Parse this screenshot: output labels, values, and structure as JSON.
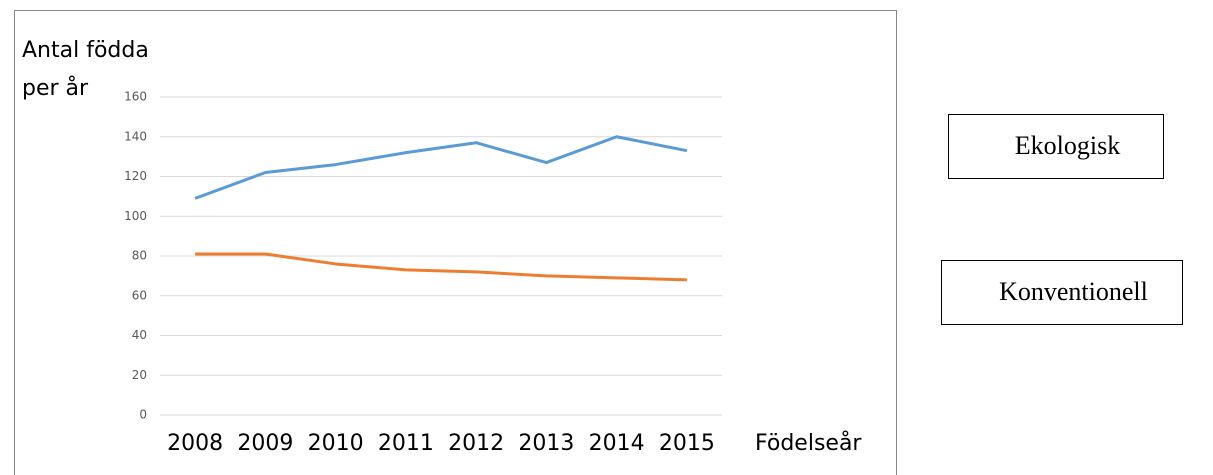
{
  "chart_data": {
    "type": "line",
    "ylabel": [
      "Antal födda",
      "per år"
    ],
    "xlabel": "Födelseår",
    "categories": [
      "2008",
      "2009",
      "2010",
      "2011",
      "2012",
      "2013",
      "2014",
      "2015"
    ],
    "series": [
      {
        "name": "Ekologisk",
        "color": "#5b9bd5",
        "values": [
          109,
          122,
          126,
          132,
          137,
          127,
          140,
          133
        ]
      },
      {
        "name": "Konventionell",
        "color": "#ed7d31",
        "values": [
          81,
          81,
          76,
          73,
          72,
          70,
          69,
          68
        ]
      }
    ],
    "ylim": [
      0,
      160
    ],
    "yticks": [
      0,
      20,
      40,
      60,
      80,
      100,
      120,
      140,
      160
    ],
    "grid": true
  }
}
